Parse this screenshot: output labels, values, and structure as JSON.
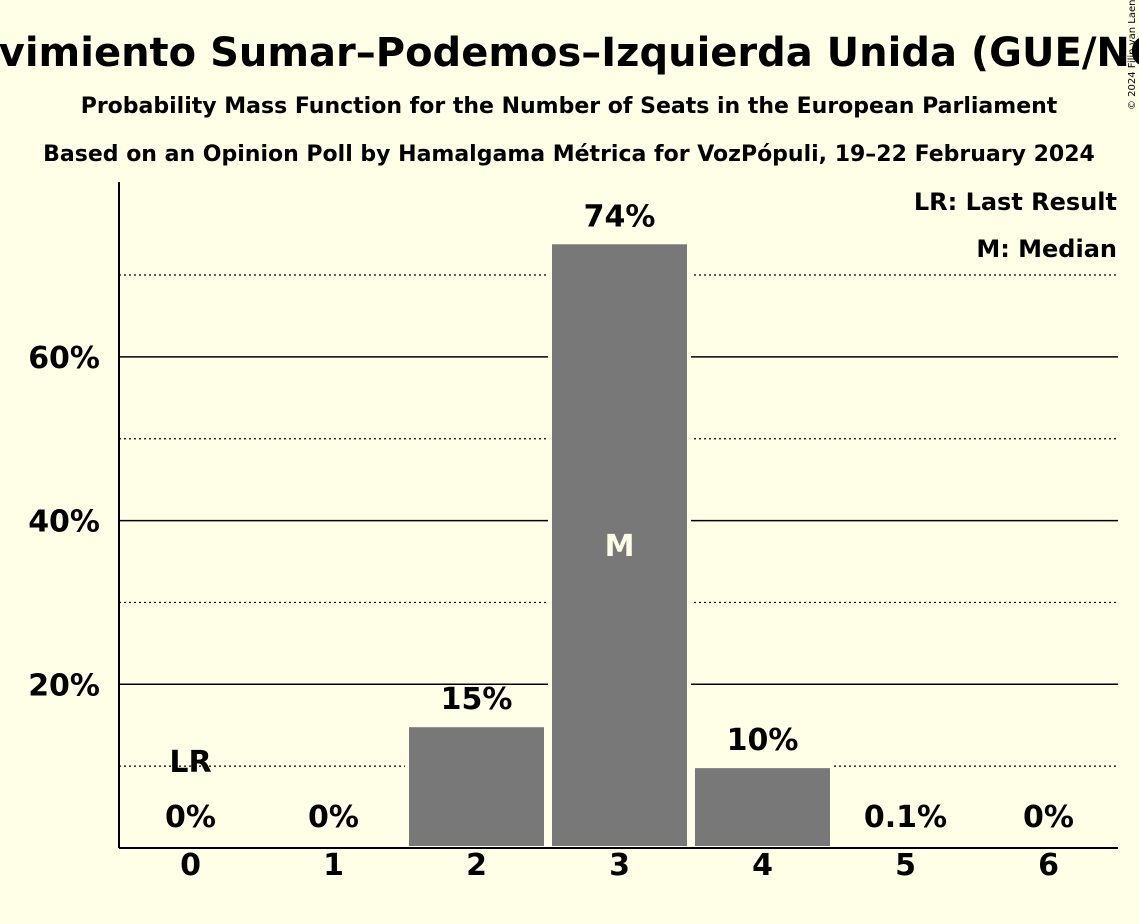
{
  "chart_data": {
    "type": "bar",
    "title": "Movimiento Sumar–Podemos–Izquierda Unida (GUE/NGL)",
    "subtitle": "Probability Mass Function for the Number of Seats in the European Parliament",
    "subtitle2": "Based on an Opinion Poll by Hamalgama Métrica for VozPópuli, 19–22 February 2024",
    "copyright": "© 2024 Filip van Laenen",
    "categories": [
      "0",
      "1",
      "2",
      "3",
      "4",
      "5",
      "6"
    ],
    "values": [
      0,
      0,
      15,
      74,
      10,
      0.1,
      0
    ],
    "labels": [
      "0%",
      "0%",
      "15%",
      "74%",
      "10%",
      "0.1%",
      "0%"
    ],
    "ylim": [
      0,
      80
    ],
    "y_ticks": [
      {
        "value": 20,
        "label": "20%"
      },
      {
        "value": 40,
        "label": "40%"
      },
      {
        "value": 60,
        "label": "60%"
      }
    ],
    "minor_grid": [
      10,
      30,
      50,
      70
    ],
    "last_result_index": 0,
    "last_result_marker": "LR",
    "median_index": 3,
    "median_marker": "M",
    "legend": [
      "LR: Last Result",
      "M: Median"
    ],
    "legend_position": "top-right",
    "bar_color": "#787878",
    "background_color": "#FFFEE6"
  }
}
